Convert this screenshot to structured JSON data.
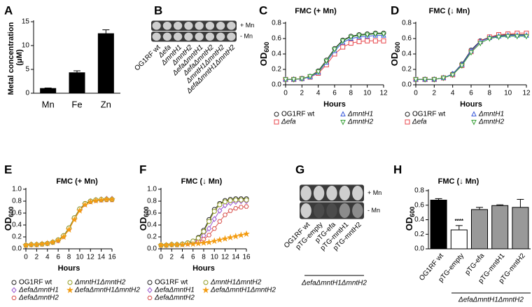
{
  "chart_data": [
    {
      "type": "bar",
      "panel": "A",
      "ylabel": "Metal concentration (μM)",
      "categories": [
        "Mn",
        "Fe",
        "Zn"
      ],
      "values": [
        1.0,
        4.3,
        12.5
      ],
      "errors": [
        0.1,
        0.4,
        0.8
      ],
      "color": "#000000",
      "ylim": [
        0,
        15
      ],
      "yticks": [
        0,
        5,
        10,
        15
      ]
    },
    {
      "type": "spot-assay",
      "panel": "B",
      "row_labels": [
        "+ Mn",
        "- Mn"
      ],
      "strains": [
        "OG1RF wt",
        "Δefa",
        "ΔmntH1",
        "ΔmntH2",
        "ΔefaΔmntH1",
        "ΔefaΔmntH2",
        "ΔmntH1ΔmntH2",
        "ΔefaΔmntH1ΔmntH2"
      ]
    },
    {
      "type": "line",
      "panel": "C",
      "title": "FMC (+ Mn)",
      "xlabel": "Hours",
      "ylabel": "OD600",
      "x": [
        0,
        1,
        2,
        3,
        4,
        5,
        6,
        7,
        8,
        9,
        10,
        11,
        12
      ],
      "xlim": [
        0,
        12
      ],
      "xticks": [
        0,
        2,
        4,
        6,
        8,
        10,
        12
      ],
      "ylim": [
        0,
        0.8
      ],
      "yticks": [
        {
          "value": 0,
          "label": "0.0"
        },
        {
          "value": 0.2,
          "label": "0.2"
        },
        {
          "value": 0.4,
          "label": "0.4"
        },
        {
          "value": 0.6,
          "label": "0.6"
        },
        {
          "value": 0.8,
          "label": "0.8"
        }
      ],
      "series": [
        {
          "name": "OG1RF wt",
          "color": "#222222",
          "marker": "circle",
          "values": [
            0.07,
            0.07,
            0.08,
            0.11,
            0.18,
            0.32,
            0.47,
            0.58,
            0.63,
            0.65,
            0.66,
            0.67,
            0.67
          ]
        },
        {
          "name": "Δefa",
          "color": "#e8474c",
          "marker": "square",
          "values": [
            0.07,
            0.07,
            0.08,
            0.1,
            0.15,
            0.26,
            0.4,
            0.49,
            0.54,
            0.56,
            0.57,
            0.57,
            0.57
          ]
        },
        {
          "name": "ΔmntH1",
          "color": "#3b5bdb",
          "marker": "triangle",
          "values": [
            0.07,
            0.07,
            0.08,
            0.1,
            0.16,
            0.29,
            0.44,
            0.55,
            0.6,
            0.62,
            0.63,
            0.64,
            0.64
          ]
        },
        {
          "name": "ΔmntH2",
          "color": "#3aa13a",
          "marker": "triangle-down",
          "values": [
            0.07,
            0.07,
            0.08,
            0.11,
            0.17,
            0.31,
            0.46,
            0.57,
            0.62,
            0.64,
            0.65,
            0.66,
            0.66
          ]
        }
      ]
    },
    {
      "type": "line",
      "panel": "D",
      "title": "FMC (↓ Mn)",
      "xlabel": "Hours",
      "ylabel": "OD600",
      "x": [
        0,
        1,
        2,
        3,
        4,
        5,
        6,
        7,
        8,
        9,
        10,
        11,
        12
      ],
      "xlim": [
        0,
        12
      ],
      "xticks": [
        0,
        2,
        4,
        6,
        8,
        10,
        12
      ],
      "ylim": [
        0,
        0.8
      ],
      "yticks": [
        {
          "value": 0,
          "label": "0.0"
        },
        {
          "value": 0.2,
          "label": "0.2"
        },
        {
          "value": 0.4,
          "label": "0.4"
        },
        {
          "value": 0.6,
          "label": "0.6"
        },
        {
          "value": 0.8,
          "label": "0.8"
        }
      ],
      "series": [
        {
          "name": "OG1RF wt",
          "color": "#222222",
          "marker": "circle",
          "values": [
            0.07,
            0.07,
            0.07,
            0.09,
            0.14,
            0.27,
            0.45,
            0.57,
            0.62,
            0.64,
            0.65,
            0.65,
            0.65
          ]
        },
        {
          "name": "Δefa",
          "color": "#e8474c",
          "marker": "square",
          "values": [
            0.07,
            0.07,
            0.07,
            0.09,
            0.13,
            0.25,
            0.43,
            0.56,
            0.62,
            0.65,
            0.66,
            0.67,
            0.67
          ]
        },
        {
          "name": "ΔmntH1",
          "color": "#3b5bdb",
          "marker": "triangle",
          "values": [
            0.07,
            0.07,
            0.07,
            0.09,
            0.14,
            0.26,
            0.44,
            0.56,
            0.61,
            0.63,
            0.64,
            0.64,
            0.64
          ]
        },
        {
          "name": "ΔmntH2",
          "color": "#3aa13a",
          "marker": "triangle-down",
          "values": [
            0.07,
            0.07,
            0.07,
            0.09,
            0.13,
            0.25,
            0.42,
            0.54,
            0.6,
            0.62,
            0.63,
            0.63,
            0.63
          ]
        }
      ]
    },
    {
      "type": "line",
      "panel": "E",
      "title": "FMC (+ Mn)",
      "xlabel": "Hours",
      "ylabel": "OD600",
      "x": [
        0,
        1,
        2,
        3,
        4,
        5,
        6,
        7,
        8,
        9,
        10,
        11,
        12,
        13,
        14,
        15,
        16
      ],
      "xlim": [
        0,
        16
      ],
      "xticks": [
        0,
        2,
        4,
        6,
        8,
        10,
        12,
        14,
        16
      ],
      "ylim": [
        0,
        1.0
      ],
      "yticks": [
        {
          "value": 0,
          "label": "0.0"
        },
        {
          "value": 0.2,
          "label": "0.2"
        },
        {
          "value": 0.4,
          "label": "0.4"
        },
        {
          "value": 0.6,
          "label": "0.6"
        },
        {
          "value": 0.8,
          "label": "0.8"
        },
        {
          "value": 1.0,
          "label": "1.0"
        }
      ],
      "series": [
        {
          "name": "OG1RF wt",
          "color": "#222222",
          "marker": "circle",
          "values": [
            0.06,
            0.07,
            0.07,
            0.08,
            0.09,
            0.11,
            0.15,
            0.22,
            0.35,
            0.52,
            0.67,
            0.76,
            0.8,
            0.82,
            0.82,
            0.83,
            0.83
          ]
        },
        {
          "name": "ΔefaΔmntH1",
          "color": "#9b59d0",
          "marker": "diamond",
          "values": [
            0.06,
            0.07,
            0.07,
            0.08,
            0.09,
            0.11,
            0.14,
            0.21,
            0.34,
            0.51,
            0.66,
            0.75,
            0.8,
            0.82,
            0.83,
            0.84,
            0.84
          ]
        },
        {
          "name": "ΔefaΔmntH2",
          "color": "#d9534f",
          "marker": "hexagon",
          "values": [
            0.06,
            0.07,
            0.07,
            0.08,
            0.09,
            0.11,
            0.14,
            0.21,
            0.33,
            0.5,
            0.65,
            0.75,
            0.79,
            0.81,
            0.82,
            0.82,
            0.82
          ]
        },
        {
          "name": "ΔmntH1ΔmntH2",
          "color": "#8f9a1f",
          "marker": "circle",
          "values": [
            0.06,
            0.07,
            0.07,
            0.08,
            0.09,
            0.11,
            0.15,
            0.22,
            0.35,
            0.52,
            0.67,
            0.76,
            0.8,
            0.82,
            0.83,
            0.83,
            0.83
          ]
        },
        {
          "name": "ΔefaΔmntH1ΔmntH2",
          "color": "#f39c12",
          "marker": "star",
          "values": [
            0.06,
            0.07,
            0.07,
            0.08,
            0.09,
            0.11,
            0.14,
            0.2,
            0.32,
            0.49,
            0.64,
            0.74,
            0.79,
            0.81,
            0.82,
            0.83,
            0.83
          ]
        }
      ]
    },
    {
      "type": "line",
      "panel": "F",
      "title": "FMC (↓ Mn)",
      "xlabel": "Hours",
      "ylabel": "OD600",
      "x": [
        0,
        1,
        2,
        3,
        4,
        5,
        6,
        7,
        8,
        9,
        10,
        11,
        12,
        13,
        14,
        15,
        16
      ],
      "xlim": [
        0,
        16
      ],
      "xticks": [
        0,
        2,
        4,
        6,
        8,
        10,
        12,
        14,
        16
      ],
      "ylim": [
        0,
        1.0
      ],
      "yticks": [
        {
          "value": 0,
          "label": "0.0"
        },
        {
          "value": 0.2,
          "label": "0.2"
        },
        {
          "value": 0.4,
          "label": "0.4"
        },
        {
          "value": 0.6,
          "label": "0.6"
        },
        {
          "value": 0.8,
          "label": "0.8"
        },
        {
          "value": 1.0,
          "label": "1.0"
        }
      ],
      "series": [
        {
          "name": "OG1RF wt",
          "color": "#222222",
          "marker": "circle",
          "values": [
            0.06,
            0.06,
            0.07,
            0.07,
            0.08,
            0.1,
            0.13,
            0.19,
            0.31,
            0.49,
            0.66,
            0.76,
            0.81,
            0.83,
            0.84,
            0.84,
            0.84
          ]
        },
        {
          "name": "ΔefaΔmntH1",
          "color": "#9b59d0",
          "marker": "diamond",
          "values": [
            0.06,
            0.06,
            0.07,
            0.07,
            0.08,
            0.09,
            0.11,
            0.15,
            0.22,
            0.34,
            0.5,
            0.64,
            0.73,
            0.77,
            0.79,
            0.8,
            0.8
          ]
        },
        {
          "name": "ΔefaΔmntH2",
          "color": "#d9534f",
          "marker": "hexagon",
          "values": [
            0.06,
            0.06,
            0.07,
            0.07,
            0.08,
            0.09,
            0.1,
            0.12,
            0.16,
            0.23,
            0.34,
            0.46,
            0.57,
            0.64,
            0.68,
            0.7,
            0.71
          ]
        },
        {
          "name": "ΔmntH1ΔmntH2",
          "color": "#8f9a1f",
          "marker": "circle",
          "values": [
            0.06,
            0.06,
            0.07,
            0.07,
            0.08,
            0.1,
            0.13,
            0.18,
            0.29,
            0.46,
            0.63,
            0.74,
            0.79,
            0.81,
            0.82,
            0.82,
            0.82
          ]
        },
        {
          "name": "ΔefaΔmntH1ΔmntH2",
          "color": "#f39c12",
          "marker": "star",
          "values": [
            0.06,
            0.06,
            0.07,
            0.07,
            0.07,
            0.08,
            0.08,
            0.09,
            0.1,
            0.11,
            0.13,
            0.15,
            0.17,
            0.19,
            0.21,
            0.23,
            0.25
          ]
        }
      ]
    },
    {
      "type": "spot-assay",
      "panel": "G",
      "row_labels": [
        "+ Mn",
        "- Mn"
      ],
      "strains": [
        "OG1RF wt",
        "pTG-empty",
        "pTG-efa",
        "pTG-mntH1",
        "pTG-mntH2"
      ],
      "group_label": "ΔefaΔmntH1ΔmntH2"
    },
    {
      "type": "bar",
      "panel": "H",
      "title": "FMC (↓ Mn)",
      "ylabel": "OD600",
      "categories": [
        "OG1RF wt",
        "pTG-empty",
        "pTG-efa",
        "pTG-mntH1",
        "pTG-mntH2"
      ],
      "values": [
        0.67,
        0.26,
        0.54,
        0.595,
        0.57
      ],
      "errors": [
        0.02,
        0.06,
        0.03,
        0.01,
        0.11
      ],
      "colors": [
        "#000000",
        "#ffffff",
        "#999999",
        "#999999",
        "#999999"
      ],
      "significance_labels": [
        null,
        "****",
        null,
        null,
        null
      ],
      "group_label": "ΔefaΔmntH1ΔmntH2",
      "ylim": [
        0,
        0.8
      ],
      "yticks": [
        {
          "value": 0,
          "label": "0.0"
        },
        {
          "value": 0.2,
          "label": "0.2"
        },
        {
          "value": 0.4,
          "label": "0.4"
        },
        {
          "value": 0.6,
          "label": "0.6"
        },
        {
          "value": 0.8,
          "label": "0.8"
        }
      ]
    }
  ]
}
